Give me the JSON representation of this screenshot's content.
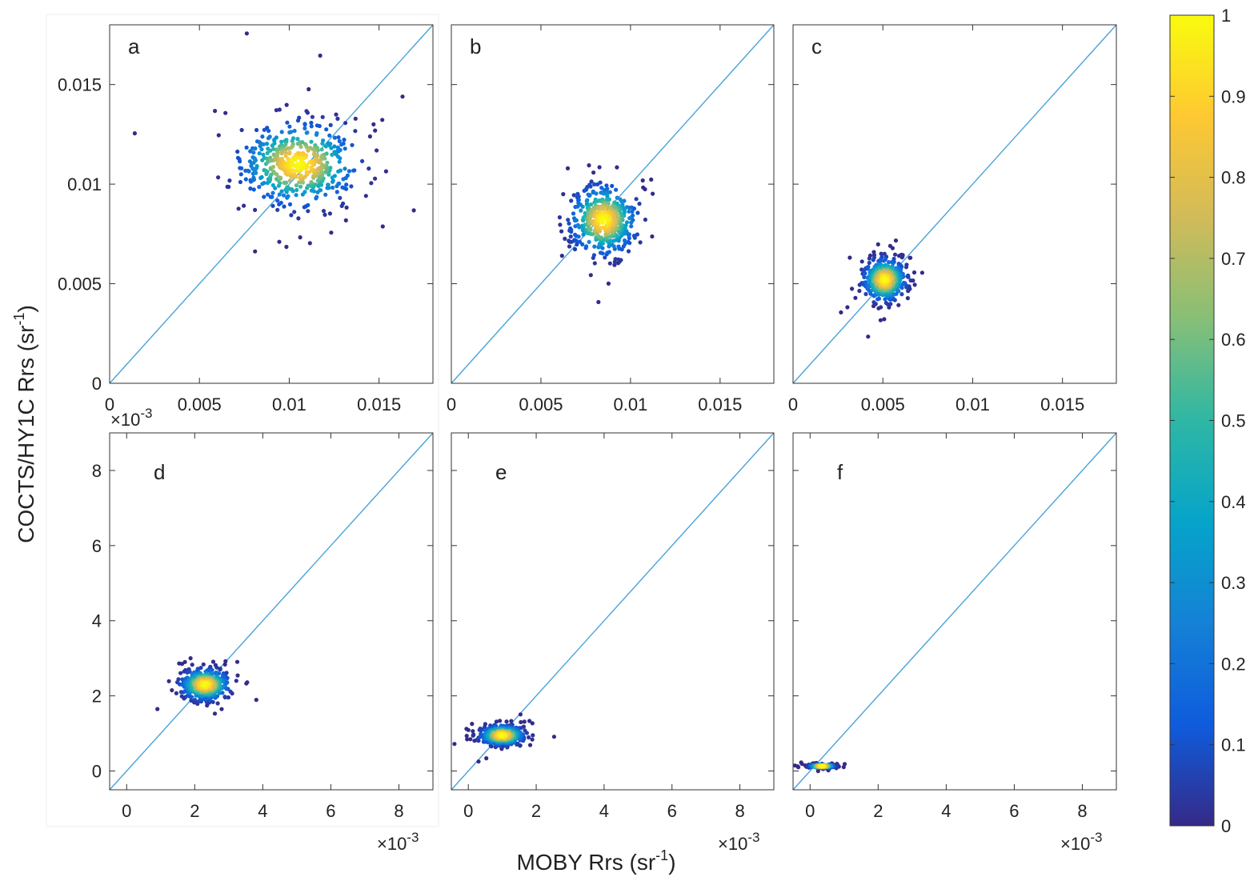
{
  "figure": {
    "ylabel_main": "COCTS/HY1C Rrs (sr",
    "ylabel_sup": "-1",
    "ylabel_close": ")",
    "xlabel_main": "MOBY Rrs (sr",
    "xlabel_sup": "-1",
    "xlabel_close": ")",
    "exp_base": "×10",
    "exp_sup": "-3"
  },
  "colorbar": {
    "colormap": "parula",
    "stops": [
      "#352a87",
      "#0f5cdd",
      "#1481d6",
      "#06a4ca",
      "#2eb7a4",
      "#87bf77",
      "#d1bb59",
      "#fec832",
      "#f9fb0e"
    ],
    "ticks": [
      "0",
      "0.1",
      "0.2",
      "0.3",
      "0.4",
      "0.5",
      "0.6",
      "0.7",
      "0.8",
      "0.9",
      "1"
    ],
    "range": [
      0,
      1
    ]
  },
  "chart_data": [
    {
      "type": "scatter",
      "panel": "a",
      "xlim": [
        0,
        0.018
      ],
      "ylim": [
        0,
        0.018
      ],
      "xticks": [
        "0",
        "0.005",
        "0.01",
        "0.015"
      ],
      "yticks": [
        "0",
        "0.005",
        "0.01",
        "0.015"
      ],
      "x_multiplier": "",
      "reference_line": "1:1",
      "cluster": {
        "center": [
          0.0105,
          0.011
        ],
        "spread": [
          0.0028,
          0.0018
        ],
        "n": 520
      },
      "density_color": "normalized point density (0–1)"
    },
    {
      "type": "scatter",
      "panel": "b",
      "xlim": [
        0,
        0.018
      ],
      "ylim": [
        0,
        0.018
      ],
      "xticks": [
        "0",
        "0.005",
        "0.01",
        "0.015"
      ],
      "yticks": [],
      "x_multiplier": "",
      "reference_line": "1:1",
      "cluster": {
        "center": [
          0.0085,
          0.0082
        ],
        "spread": [
          0.0016,
          0.0015
        ],
        "n": 480
      },
      "density_color": "normalized point density (0–1)"
    },
    {
      "type": "scatter",
      "panel": "c",
      "xlim": [
        0,
        0.018
      ],
      "ylim": [
        0,
        0.018
      ],
      "xticks": [
        "0",
        "0.005",
        "0.01",
        "0.015"
      ],
      "yticks": [],
      "x_multiplier": "",
      "reference_line": "1:1",
      "cluster": {
        "center": [
          0.0051,
          0.0052
        ],
        "spread": [
          0.001,
          0.0009
        ],
        "n": 480
      },
      "density_color": "normalized point density (0–1)"
    },
    {
      "type": "scatter",
      "panel": "d",
      "xlim": [
        -0.5,
        9
      ],
      "ylim": [
        -0.5,
        9
      ],
      "units_multiplier": "1e-3",
      "xticks": [
        "0",
        "2",
        "4",
        "6",
        "8"
      ],
      "yticks": [
        "0",
        "2",
        "4",
        "6",
        "8"
      ],
      "x_multiplier": "×10-3",
      "reference_line": "1:1",
      "cluster": {
        "center": [
          2.3,
          2.3
        ],
        "spread": [
          0.6,
          0.35
        ],
        "n": 500
      },
      "density_color": "normalized point density (0–1)"
    },
    {
      "type": "scatter",
      "panel": "e",
      "xlim": [
        -0.5,
        9
      ],
      "ylim": [
        -0.5,
        9
      ],
      "units_multiplier": "1e-3",
      "xticks": [
        "0",
        "2",
        "4",
        "6",
        "8"
      ],
      "yticks": [],
      "x_multiplier": "×10-3",
      "reference_line": "1:1",
      "cluster": {
        "center": [
          1.0,
          0.95
        ],
        "spread": [
          0.55,
          0.22
        ],
        "n": 460
      },
      "density_color": "normalized point density (0–1)"
    },
    {
      "type": "scatter",
      "panel": "f",
      "xlim": [
        -0.5,
        9
      ],
      "ylim": [
        -0.5,
        9
      ],
      "units_multiplier": "1e-3",
      "xticks": [
        "0",
        "2",
        "4",
        "6",
        "8"
      ],
      "yticks": [],
      "x_multiplier": "×10-3",
      "reference_line": "1:1",
      "cluster": {
        "center": [
          0.35,
          0.13
        ],
        "spread": [
          0.3,
          0.04
        ],
        "n": 400
      },
      "density_color": "normalized point density (0–1)"
    }
  ]
}
